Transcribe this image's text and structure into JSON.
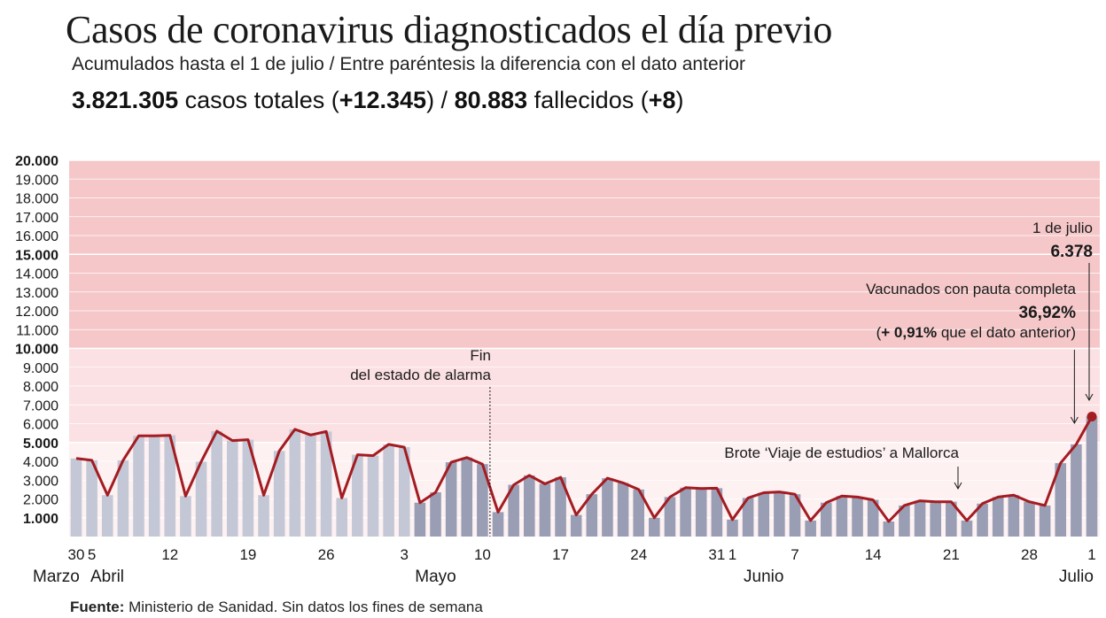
{
  "header": {
    "title": "Casos de coronavirus diagnosticados el día previo",
    "subtitle": "Acumulados hasta el 1 de julio / Entre paréntesis la diferencia con el dato anterior",
    "summary": {
      "total_cases": "3.821.305",
      "cases_text": " casos totales (",
      "cases_diff": "+12.345",
      "mid_text": ") / ",
      "deaths": "80.883",
      "deaths_text": " fallecidos (",
      "deaths_diff": "+8",
      "end_text": ")"
    }
  },
  "footer": {
    "source_label": "Fuente:",
    "source_text": " Ministerio de Sanidad. Sin datos los fines de semana"
  },
  "colors": {
    "line": "#a31c22",
    "bar_recent": "#9a9eb4",
    "bar_old": "#c4c8d6",
    "band_high": "#f5c7c9",
    "band_mid": "#fbe1e3",
    "band_low": "#fdf1f2",
    "grid": "#ffffff"
  },
  "chart_data": {
    "type": "bar+line",
    "y_range": [
      0,
      20000
    ],
    "y_ticks": [
      {
        "value": 1000,
        "label": "1.000",
        "bold": true
      },
      {
        "value": 2000,
        "label": "2.000",
        "bold": false
      },
      {
        "value": 3000,
        "label": "3.000",
        "bold": false
      },
      {
        "value": 4000,
        "label": "4.000",
        "bold": false
      },
      {
        "value": 5000,
        "label": "5.000",
        "bold": true
      },
      {
        "value": 6000,
        "label": "6.000",
        "bold": false
      },
      {
        "value": 7000,
        "label": "7.000",
        "bold": false
      },
      {
        "value": 8000,
        "label": "8.000",
        "bold": false
      },
      {
        "value": 9000,
        "label": "9.000",
        "bold": false
      },
      {
        "value": 10000,
        "label": "10.000",
        "bold": true
      },
      {
        "value": 11000,
        "label": "11.000",
        "bold": false
      },
      {
        "value": 12000,
        "label": "12.000",
        "bold": false
      },
      {
        "value": 13000,
        "label": "13.000",
        "bold": false
      },
      {
        "value": 14000,
        "label": "14.000",
        "bold": false
      },
      {
        "value": 15000,
        "label": "15.000",
        "bold": true
      },
      {
        "value": 16000,
        "label": "16.000",
        "bold": false
      },
      {
        "value": 17000,
        "label": "17.000",
        "bold": false
      },
      {
        "value": 18000,
        "label": "18.000",
        "bold": false
      },
      {
        "value": 19000,
        "label": "19.000",
        "bold": false
      },
      {
        "value": 20000,
        "label": "20.000",
        "bold": true
      }
    ],
    "bands": [
      {
        "from": 0,
        "to": 5000,
        "color": "#fdf1f2"
      },
      {
        "from": 5000,
        "to": 10000,
        "color": "#fbe1e3"
      },
      {
        "from": 10000,
        "to": 20000,
        "color": "#f5c7c9"
      }
    ],
    "values": [
      4150,
      4050,
      2200,
      4050,
      5350,
      5350,
      5380,
      2150,
      3980,
      5600,
      5100,
      5150,
      2200,
      4550,
      5700,
      5400,
      5580,
      2050,
      4350,
      4300,
      4900,
      4750,
      1800,
      2350,
      3950,
      4200,
      3850,
      1300,
      2750,
      3250,
      2800,
      3150,
      1150,
      2250,
      3100,
      2850,
      2500,
      1000,
      2100,
      2600,
      2550,
      2570,
      900,
      2050,
      2330,
      2370,
      2250,
      850,
      1800,
      2150,
      2100,
      1950,
      800,
      1650,
      1900,
      1850,
      1850,
      850,
      1750,
      2100,
      2200,
      1850,
      1650,
      3900,
      4900,
      6378
    ],
    "tick_labels": [
      {
        "index": 0,
        "label": "30"
      },
      {
        "index": 1,
        "label": "5"
      },
      {
        "index": 6,
        "label": "12"
      },
      {
        "index": 11,
        "label": "19"
      },
      {
        "index": 16,
        "label": "26"
      },
      {
        "index": 21,
        "label": "3"
      },
      {
        "index": 26,
        "label": "10"
      },
      {
        "index": 31,
        "label": "17"
      },
      {
        "index": 36,
        "label": "24"
      },
      {
        "index": 41,
        "label": "31"
      },
      {
        "index": 42,
        "label": "1"
      },
      {
        "index": 46,
        "label": "7"
      },
      {
        "index": 51,
        "label": "14"
      },
      {
        "index": 56,
        "label": "21"
      },
      {
        "index": 61,
        "label": "28"
      },
      {
        "index": 65,
        "label": "1"
      }
    ],
    "month_labels": [
      {
        "index": 0,
        "label": "Marzo"
      },
      {
        "index": 1,
        "label": "Abril"
      },
      {
        "index": 23,
        "label": "Mayo"
      },
      {
        "index": 44,
        "label": "Junio"
      },
      {
        "index": 64,
        "label": "Julio"
      }
    ],
    "annotations": {
      "fin_alarma": {
        "after_index": 26,
        "line1": "Fin",
        "line2": "del estado de alarma"
      },
      "brote": {
        "index": 57,
        "text": "Brote ‘Viaje de estudios’ a Mallorca"
      },
      "vacunados": {
        "index": 64,
        "line1": "Vacunados con pauta completa",
        "value": "36,92%",
        "diff_bold": "+ 0,91%",
        "diff_text": " que el dato anterior)",
        "diff_open": "("
      },
      "last_point": {
        "index": 65,
        "date": "1 de julio",
        "value": "6.378"
      }
    }
  }
}
